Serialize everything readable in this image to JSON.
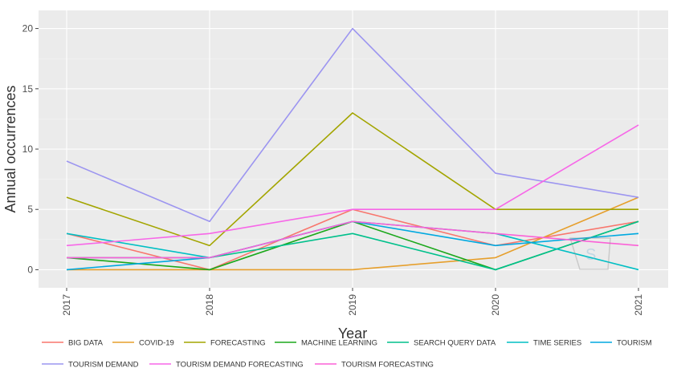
{
  "chart_data": {
    "type": "line",
    "xlabel": "Year",
    "ylabel": "Annual occurrences",
    "x": [
      "2017",
      "2018",
      "2019",
      "2020",
      "2021"
    ],
    "ylim": [
      -1.5,
      21.5
    ],
    "yticks": [
      0,
      5,
      10,
      15,
      20
    ],
    "grid": true,
    "legend_position": "bottom",
    "series": [
      {
        "name": "BIG DATA",
        "color": "#f8766d",
        "values": [
          3,
          0,
          5,
          2,
          4
        ]
      },
      {
        "name": "COVID-19",
        "color": "#e69f2c",
        "values": [
          0,
          0,
          0,
          1,
          6
        ]
      },
      {
        "name": "FORECASTING",
        "color": "#a3a500",
        "values": [
          6,
          2,
          13,
          5,
          5
        ]
      },
      {
        "name": "MACHINE LEARNING",
        "color": "#1ba81b",
        "values": [
          1,
          0,
          4,
          0,
          4
        ]
      },
      {
        "name": "SEARCH QUERY DATA",
        "color": "#00c08b",
        "values": [
          1,
          1,
          3,
          0,
          4
        ]
      },
      {
        "name": "TIME SERIES",
        "color": "#00bfc4",
        "values": [
          3,
          1,
          4,
          3,
          0
        ]
      },
      {
        "name": "TOURISM",
        "color": "#00a9e0",
        "values": [
          0,
          1,
          4,
          2,
          3
        ]
      },
      {
        "name": "TOURISM DEMAND",
        "color": "#9c95f0",
        "values": [
          9,
          4,
          20,
          8,
          6
        ]
      },
      {
        "name": "TOURISM DEMAND FORECASTING",
        "color": "#f767e8",
        "values": [
          2,
          3,
          5,
          5,
          12
        ]
      },
      {
        "name": "TOURISM FORECASTING",
        "color": "#fb61d7",
        "values": [
          1,
          1,
          4,
          3,
          2
        ]
      }
    ]
  }
}
